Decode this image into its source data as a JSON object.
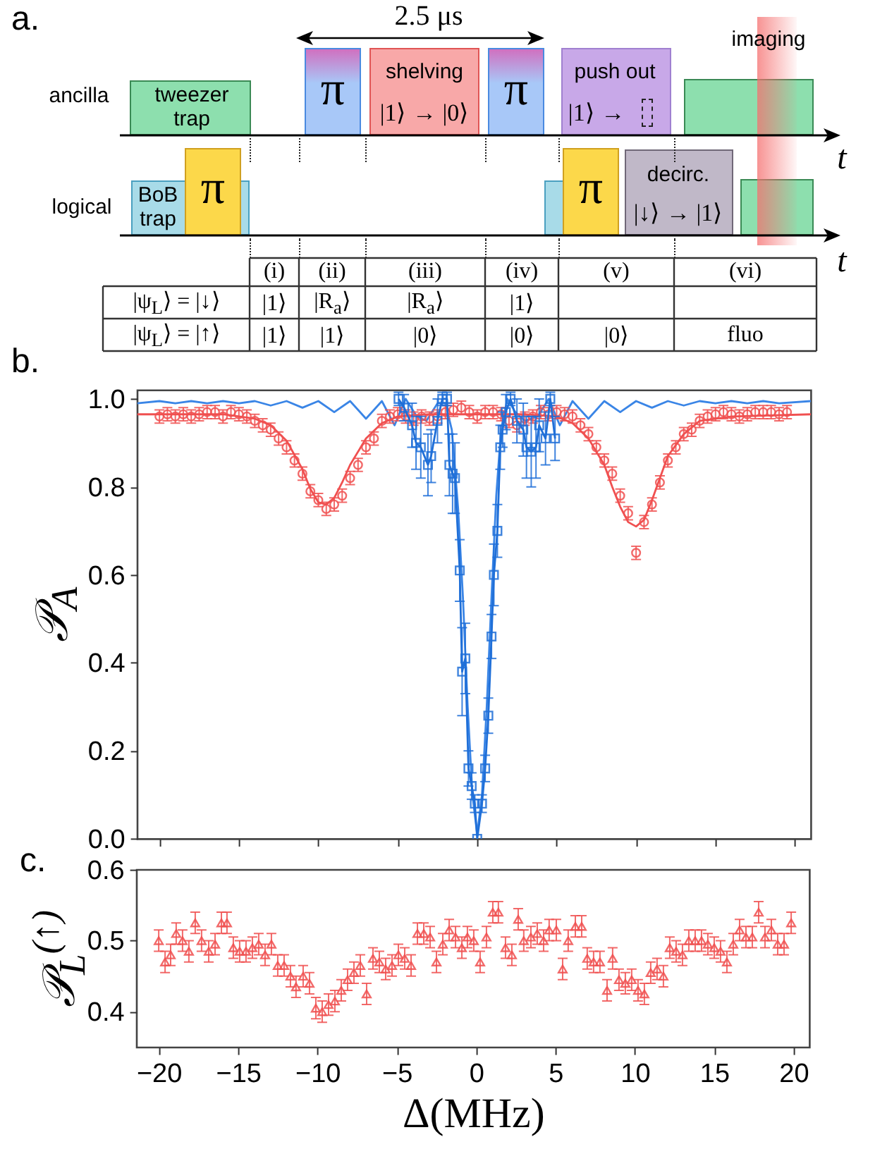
{
  "chart_data": [
    {
      "type": "other",
      "title": "a.",
      "annotations": [
        "2.5 μs",
        "ancilla",
        "logical",
        "tweezer trap",
        "π",
        "shelving",
        "|1⟩ → |0⟩",
        "π",
        "push out",
        "|1⟩ →",
        "imaging",
        "t",
        "BoB trap",
        "π",
        "π",
        "decirc.",
        "|↓⟩ → |1⟩",
        "t",
        "(i)",
        "(ii)",
        "(iii)",
        "(iv)",
        "(v)",
        "(vi)",
        "|ψ$_{L}$⟩ = |↓⟩",
        "|1⟩",
        "|R$_{a}$⟩",
        "|R$_{a}$⟩",
        "|1⟩",
        "|ψ$_{L}$⟩ = |↑⟩",
        "|1⟩",
        "|1⟩",
        "|0⟩",
        "|0⟩",
        "|0⟩",
        "fluo"
      ]
    },
    {
      "type": "line",
      "title": "b.",
      "ylabel": "𝒫$_{A}$",
      "xlim": [
        -21.4,
        21
      ],
      "ylim": [
        0,
        1.02
      ],
      "xticks": [
        -20,
        -15,
        -10,
        -5,
        0,
        5,
        10,
        15,
        20
      ],
      "yticks": [
        {
          "value": 0,
          "label": "0.0"
        },
        0.2,
        0.4,
        0.6,
        0.8,
        {
          "value": 1,
          "label": "1.0"
        }
      ],
      "tick_labels": "y",
      "series": [
        {
          "type": "line",
          "color": "#3a85e6",
          "x": [
            -21.4,
            -20,
            -19,
            -18,
            -17,
            -16,
            -15,
            -14,
            -13,
            -12,
            -11,
            -10,
            -9,
            -8,
            -7,
            -6,
            -5.2,
            -4.5,
            -3.8,
            -3.2,
            -2.5,
            -2,
            -1.6,
            -1.2,
            -0.9,
            -0.6,
            -0.3,
            0,
            0.3,
            0.6,
            0.9,
            1.2,
            1.5,
            1.9,
            2.4,
            3,
            3.8,
            4.5,
            5.2,
            6,
            7,
            8,
            9,
            10,
            11,
            12,
            13,
            14,
            15,
            16,
            17,
            18,
            19,
            21
          ],
          "values": [
            0.99,
            0.995,
            0.99,
            0.995,
            0.99,
            0.995,
            0.99,
            0.995,
            0.985,
            0.995,
            0.98,
            0.995,
            0.97,
            0.995,
            0.955,
            0.995,
            0.94,
            1.0,
            0.96,
            0.95,
            0.99,
            0.99,
            0.93,
            0.75,
            0.55,
            0.3,
            0.1,
            0.01,
            0.1,
            0.3,
            0.55,
            0.78,
            0.93,
            1.0,
            0.97,
            0.95,
            0.96,
            1.0,
            0.94,
            0.995,
            0.955,
            0.995,
            0.97,
            0.995,
            0.98,
            0.995,
            0.985,
            0.995,
            0.99,
            0.995,
            0.99,
            0.995,
            0.99,
            0.995
          ]
        },
        {
          "type": "line",
          "color": "#f05050",
          "x": [
            -21.4,
            -16,
            -14,
            -13,
            -12,
            -11,
            -10.5,
            -10,
            -9.5,
            -9,
            -8.5,
            -8,
            -7,
            -6,
            -5,
            -3,
            3,
            5,
            6,
            7,
            8,
            8.5,
            9,
            9.5,
            10,
            10.5,
            11,
            11.5,
            12,
            13,
            14,
            16,
            21
          ],
          "values": [
            0.965,
            0.965,
            0.955,
            0.94,
            0.905,
            0.84,
            0.795,
            0.765,
            0.76,
            0.775,
            0.81,
            0.85,
            0.91,
            0.945,
            0.96,
            0.965,
            0.965,
            0.96,
            0.945,
            0.91,
            0.85,
            0.8,
            0.755,
            0.72,
            0.71,
            0.725,
            0.77,
            0.82,
            0.87,
            0.92,
            0.95,
            0.96,
            0.965
          ]
        },
        {
          "type": "scatter",
          "marker": "circle",
          "color": "#f05050",
          "x": [
            -20,
            -19.5,
            -19,
            -18.5,
            -18,
            -17.5,
            -17,
            -16.5,
            -16,
            -15.5,
            -15,
            -14.5,
            -14,
            -13.5,
            -13,
            -12.5,
            -12,
            -11.5,
            -11,
            -10.5,
            -10,
            -9.5,
            -9,
            -8.5,
            -8,
            -7.5,
            -7,
            -6.5,
            -6,
            -5.5,
            -5,
            -4.5,
            -4,
            -3.5,
            -3,
            -2.5,
            -2,
            -1.5,
            -1,
            -0.5,
            0,
            0.5,
            1,
            1.5,
            2,
            2.5,
            3,
            3.5,
            4,
            4.5,
            5,
            5.5,
            6,
            6.5,
            7,
            7.5,
            8,
            8.5,
            9,
            9.5,
            10,
            10.5,
            11,
            11.5,
            12,
            12.5,
            13,
            13.5,
            14,
            14.5,
            15,
            15.5,
            16,
            16.5,
            17,
            17.5,
            18,
            18.5,
            19,
            19.5
          ],
          "values": [
            0.96,
            0.965,
            0.96,
            0.965,
            0.96,
            0.965,
            0.97,
            0.97,
            0.96,
            0.97,
            0.965,
            0.96,
            0.95,
            0.94,
            0.93,
            0.91,
            0.89,
            0.86,
            0.83,
            0.79,
            0.77,
            0.75,
            0.76,
            0.78,
            0.82,
            0.85,
            0.89,
            0.91,
            0.95,
            0.96,
            0.965,
            0.96,
            0.955,
            0.96,
            0.955,
            0.96,
            0.97,
            0.975,
            0.98,
            0.97,
            0.96,
            0.97,
            0.97,
            0.965,
            0.95,
            0.94,
            0.955,
            0.96,
            0.97,
            0.965,
            0.97,
            0.965,
            0.96,
            0.94,
            0.92,
            0.89,
            0.86,
            0.83,
            0.78,
            0.74,
            0.65,
            0.72,
            0.76,
            0.81,
            0.86,
            0.89,
            0.92,
            0.93,
            0.95,
            0.96,
            0.965,
            0.97,
            0.965,
            0.96,
            0.965,
            0.97,
            0.97,
            0.97,
            0.965,
            0.97
          ],
          "errors": [
            0.015,
            0.015,
            0.015,
            0.015,
            0.015,
            0.015,
            0.015,
            0.015,
            0.015,
            0.015,
            0.015,
            0.015,
            0.015,
            0.015,
            0.015,
            0.015,
            0.015,
            0.015,
            0.015,
            0.015,
            0.015,
            0.015,
            0.015,
            0.015,
            0.015,
            0.015,
            0.015,
            0.015,
            0.015,
            0.015,
            0.015,
            0.015,
            0.015,
            0.015,
            0.015,
            0.015,
            0.015,
            0.015,
            0.015,
            0.015,
            0.015,
            0.015,
            0.015,
            0.015,
            0.015,
            0.015,
            0.015,
            0.015,
            0.015,
            0.015,
            0.015,
            0.015,
            0.015,
            0.015,
            0.015,
            0.015,
            0.015,
            0.015,
            0.015,
            0.015,
            0.015,
            0.015,
            0.015,
            0.015,
            0.015,
            0.015,
            0.015,
            0.015,
            0.015,
            0.015,
            0.015,
            0.015,
            0.015,
            0.015,
            0.015,
            0.015,
            0.015,
            0.015,
            0.015,
            0.015
          ]
        },
        {
          "type": "line",
          "marker": "square",
          "color": "#1f6fd8",
          "x": [
            -4.95,
            -4.6,
            -4.1,
            -3.85,
            -3.55,
            -3.1,
            -2.9,
            -2.5,
            -2.2,
            -1.9,
            -1.75,
            -1.55,
            -1.4,
            -1.1,
            -0.95,
            -0.75,
            -0.55,
            -0.35,
            -0.15,
            0,
            0.3,
            0.5,
            0.7,
            0.9,
            1.05,
            1.27,
            1.45,
            1.6,
            1.8,
            2.1,
            2.5,
            2.9,
            3.1,
            3.4,
            3.7,
            3.9,
            4.3,
            4.6,
            4.9
          ],
          "values": [
            1.0,
            0.98,
            0.94,
            0.9,
            0.89,
            0.85,
            0.87,
            0.95,
            1.0,
            1.0,
            0.85,
            0.83,
            0.82,
            0.61,
            0.38,
            0.41,
            0.16,
            0.12,
            0.08,
            0.0,
            0.08,
            0.16,
            0.28,
            0.46,
            0.6,
            0.7,
            0.89,
            0.93,
            0.97,
            1.0,
            0.95,
            0.93,
            0.89,
            0.88,
            0.89,
            0.94,
            0.91,
            1.0,
            0.91
          ],
          "errors": [
            0.015,
            0.03,
            0.05,
            0.06,
            0.07,
            0.07,
            0.06,
            0.05,
            0.015,
            0.015,
            0.07,
            0.09,
            0.08,
            0.07,
            0.1,
            0.08,
            0.04,
            0.03,
            0.02,
            null,
            0.02,
            0.03,
            0.04,
            0.05,
            0.07,
            0.06,
            0.05,
            0.04,
            0.04,
            0.015,
            0.05,
            0.06,
            0.07,
            0.08,
            0.07,
            0.06,
            0.06,
            0.015,
            0.05
          ]
        }
      ]
    },
    {
      "type": "scatter",
      "title": "c.",
      "xlabel": "Δ(MHz)",
      "ylabel": "𝒫$_{L}$$^{(↑)}$",
      "xlim": [
        -21.4,
        21
      ],
      "ylim": [
        0.35,
        0.6
      ],
      "xticks": [
        -20,
        -15,
        -10,
        -5,
        0,
        5,
        10,
        15,
        20
      ],
      "yticks": [
        0.4,
        0.5,
        0.6
      ],
      "series": [
        {
          "type": "scatter",
          "marker": "triangle",
          "color": "#f05050",
          "x": [
            -20,
            -19.6,
            -19.25,
            -18.9,
            -18.5,
            -18.1,
            -17.7,
            -17.3,
            -16.85,
            -16.45,
            -16.05,
            -15.7,
            -15.3,
            -14.9,
            -14.5,
            -14.1,
            -13.7,
            -13.3,
            -12.9,
            -12.5,
            -12.1,
            -11.7,
            -11.35,
            -10.9,
            -10.5,
            -10.1,
            -9.7,
            -9.3,
            -8.9,
            -8.5,
            -8.1,
            -7.7,
            -7.3,
            -6.9,
            -6.5,
            -6.1,
            -5.7,
            -5.3,
            -4.9,
            -4.5,
            -4.1,
            -3.7,
            -3.3,
            -2.9,
            -2.5,
            -2.1,
            -1.7,
            -1.3,
            -0.9,
            -0.55,
            -0.15,
            0.25,
            0.65,
            1.05,
            1.4,
            1.85,
            2.25,
            2.65,
            3.0,
            3.45,
            3.85,
            4.25,
            4.6,
            5.05,
            5.45,
            5.8,
            6.25,
            6.65,
            7.0,
            7.4,
            7.8,
            8.25,
            8.6,
            9.0,
            9.4,
            9.8,
            10.2,
            10.6,
            11.0,
            11.4,
            11.8,
            12.2,
            12.6,
            13.0,
            13.4,
            13.8,
            14.2,
            14.6,
            15.0,
            15.4,
            15.8,
            16.2,
            16.6,
            17.0,
            17.4,
            17.8,
            18.2,
            18.6,
            19.0,
            19.4,
            19.85
          ],
          "values": [
            0.5,
            0.47,
            0.48,
            0.51,
            0.5,
            0.485,
            0.525,
            0.5,
            0.485,
            0.495,
            0.525,
            0.525,
            0.49,
            0.485,
            0.485,
            0.49,
            0.495,
            0.48,
            0.495,
            0.465,
            0.465,
            0.45,
            0.435,
            0.45,
            0.44,
            0.405,
            0.4,
            0.41,
            0.415,
            0.43,
            0.445,
            0.455,
            0.465,
            0.425,
            0.475,
            0.47,
            0.46,
            0.465,
            0.48,
            0.475,
            0.465,
            0.51,
            0.51,
            0.505,
            0.47,
            0.495,
            0.515,
            0.505,
            0.49,
            0.505,
            0.5,
            0.47,
            0.505,
            0.54,
            0.54,
            0.49,
            0.48,
            0.53,
            0.5,
            0.505,
            0.51,
            0.5,
            0.515,
            0.515,
            0.46,
            0.5,
            0.52,
            0.52,
            0.475,
            0.47,
            0.47,
            0.43,
            0.475,
            0.445,
            0.44,
            0.445,
            0.43,
            0.425,
            0.455,
            0.46,
            0.45,
            0.49,
            0.485,
            0.48,
            0.5,
            0.5,
            0.5,
            0.495,
            0.49,
            0.485,
            0.47,
            0.495,
            0.515,
            0.505,
            0.505,
            0.54,
            0.505,
            0.515,
            0.495,
            0.495,
            0.525
          ],
          "errors": [
            0.015,
            0.015,
            0.015,
            0.015,
            0.015,
            0.015,
            0.015,
            0.015,
            0.015,
            0.015,
            0.015,
            0.015,
            0.015,
            0.015,
            0.015,
            0.015,
            0.015,
            0.015,
            0.015,
            0.015,
            0.015,
            0.015,
            0.015,
            0.015,
            0.015,
            0.015,
            0.015,
            0.015,
            0.015,
            0.015,
            0.015,
            0.015,
            0.015,
            0.015,
            0.015,
            0.015,
            0.015,
            0.015,
            0.015,
            0.015,
            0.015,
            0.015,
            0.015,
            0.015,
            0.015,
            0.015,
            0.015,
            0.015,
            0.015,
            0.015,
            0.015,
            0.015,
            0.015,
            0.015,
            0.015,
            0.015,
            0.015,
            0.015,
            0.015,
            0.015,
            0.015,
            0.015,
            0.015,
            0.015,
            0.015,
            0.015,
            0.015,
            0.015,
            0.015,
            0.015,
            0.015,
            0.015,
            0.015,
            0.015,
            0.015,
            0.015,
            0.015,
            0.015,
            0.015,
            0.015,
            0.015,
            0.015,
            0.015,
            0.015,
            0.015,
            0.015,
            0.015,
            0.015,
            0.015,
            0.015,
            0.015,
            0.015,
            0.015,
            0.015,
            0.015,
            0.015,
            0.015,
            0.015,
            0.015,
            0.015,
            0.015
          ]
        }
      ]
    }
  ]
}
